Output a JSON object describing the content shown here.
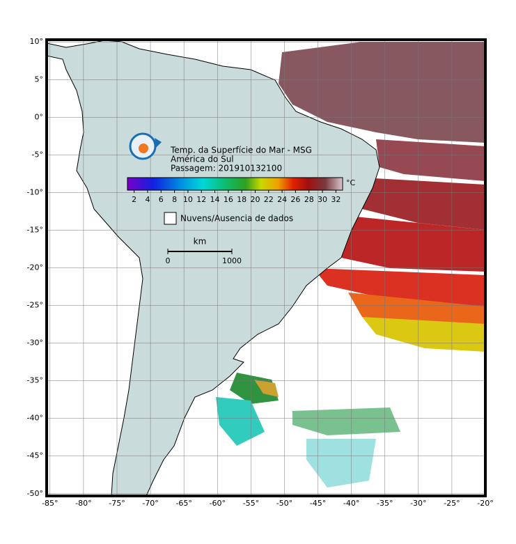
{
  "map": {
    "title": "Temp. da Superfície do Mar - MSG",
    "subtitle": "América do Sul",
    "pass": "Passagem: 201910132100",
    "lon_range": [
      -85.5,
      -20
    ],
    "lat_range": [
      10.3,
      -50.3
    ],
    "lon_ticks": [
      {
        "value": -85,
        "label": "-85°"
      },
      {
        "value": -80,
        "label": "-80°"
      },
      {
        "value": -75,
        "label": "-75°"
      },
      {
        "value": -70,
        "label": "-70°"
      },
      {
        "value": -65,
        "label": "-65°"
      },
      {
        "value": -60,
        "label": "-60°"
      },
      {
        "value": -55,
        "label": "-55°"
      },
      {
        "value": -50,
        "label": "-50°"
      },
      {
        "value": -45,
        "label": "-45°"
      },
      {
        "value": -40,
        "label": "-40°"
      },
      {
        "value": -35,
        "label": "-35°"
      },
      {
        "value": -30,
        "label": "-30°"
      },
      {
        "value": -25,
        "label": "-25°"
      },
      {
        "value": -20,
        "label": "-20°"
      }
    ],
    "lat_ticks": [
      {
        "value": 10,
        "label": "10°"
      },
      {
        "value": 5,
        "label": "5°"
      },
      {
        "value": 0,
        "label": "0°"
      },
      {
        "value": -5,
        "label": "-5°"
      },
      {
        "value": -10,
        "label": "-10°"
      },
      {
        "value": -15,
        "label": "-15°"
      },
      {
        "value": -20,
        "label": "-20°"
      },
      {
        "value": -25,
        "label": "-25°"
      },
      {
        "value": -30,
        "label": "-30°"
      },
      {
        "value": -35,
        "label": "-35°"
      },
      {
        "value": -40,
        "label": "-40°"
      },
      {
        "value": -45,
        "label": "-45°"
      },
      {
        "value": -50,
        "label": "-50°"
      }
    ],
    "colorbar": {
      "range": [
        1,
        33
      ],
      "ticks": [
        2,
        4,
        6,
        8,
        10,
        12,
        14,
        16,
        18,
        20,
        22,
        24,
        26,
        28,
        30,
        32
      ],
      "unit": "°C"
    },
    "legend": "Nuvens/Ausencia de dados",
    "scale": {
      "unit": "km",
      "range": [
        0,
        1000
      ],
      "ticks": [
        0,
        1000
      ]
    }
  }
}
